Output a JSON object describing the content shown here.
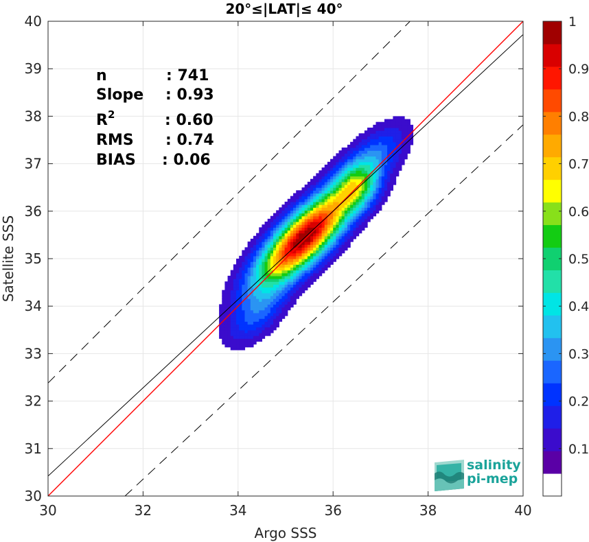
{
  "chart_data": {
    "type": "heatmap",
    "title": "20°≤|LAT|≤ 40°",
    "xlabel": "Argo SSS",
    "ylabel": "Satellite SSS",
    "xlim": [
      30,
      40
    ],
    "ylim": [
      30,
      40
    ],
    "xticks": [
      "30",
      "32",
      "34",
      "36",
      "38",
      "40"
    ],
    "yticks": [
      "30",
      "31",
      "32",
      "33",
      "34",
      "35",
      "36",
      "37",
      "38",
      "39",
      "40"
    ],
    "grid": true,
    "description_lines": [
      {
        "name": "1:1 line",
        "color": "#ff0000",
        "points": [
          [
            30,
            30
          ],
          [
            40,
            40
          ]
        ]
      },
      {
        "name": "regression",
        "color": "#000000",
        "points": [
          [
            30,
            30.42
          ],
          [
            40,
            39.72
          ]
        ]
      },
      {
        "name": "+2σ",
        "color": "#000000",
        "dash": true,
        "points": [
          [
            30,
            32.38
          ],
          [
            40,
            42.38
          ]
        ]
      },
      {
        "name": "-2σ",
        "color": "#000000",
        "dash": true,
        "points": [
          [
            31.62,
            30
          ],
          [
            40,
            37.82
          ]
        ]
      }
    ],
    "density_peaks": [
      {
        "x": 35.4,
        "y": 35.45,
        "amplitude": 1.0,
        "sigma_along": 0.95,
        "sigma_across": 0.33
      },
      {
        "x": 34.4,
        "y": 33.8,
        "amplitude": 0.18,
        "sigma_along": 0.55,
        "sigma_across": 0.28
      },
      {
        "x": 36.8,
        "y": 37.1,
        "amplitude": 0.22,
        "sigma_along": 0.65,
        "sigma_across": 0.3
      },
      {
        "x": 36.5,
        "y": 36.5,
        "amplitude": 0.28,
        "sigma_along": 0.35,
        "sigma_across": 0.3
      }
    ],
    "stats": [
      {
        "label": "n",
        "value": ": 741"
      },
      {
        "label": "Slope",
        "value": ": 0.93"
      },
      {
        "label": "R",
        "sup": "2",
        "value": ": 0.60"
      },
      {
        "label": "RMS",
        "value": ": 0.74"
      },
      {
        "label": "BIAS",
        "value": ": 0.06"
      }
    ],
    "colorbar": {
      "range": [
        0,
        1
      ],
      "ticks": [
        "0.1",
        "0.2",
        "0.3",
        "0.4",
        "0.5",
        "0.6",
        "0.7",
        "0.8",
        "0.9",
        "1"
      ],
      "colors": [
        "#ffffff",
        "#5a00a6",
        "#3b0ccc",
        "#1f1fe8",
        "#0033ff",
        "#1a66ff",
        "#2b94f2",
        "#22c1ef",
        "#00e5e5",
        "#22e0a8",
        "#10d070",
        "#13cc13",
        "#88e01a",
        "#ffff00",
        "#ffd000",
        "#ffaa00",
        "#ff7f00",
        "#ff4a00",
        "#ff1600",
        "#d90000",
        "#a00000",
        "#780000"
      ]
    }
  },
  "logo": {
    "line1": "salinity",
    "line2": "pi-mep"
  }
}
